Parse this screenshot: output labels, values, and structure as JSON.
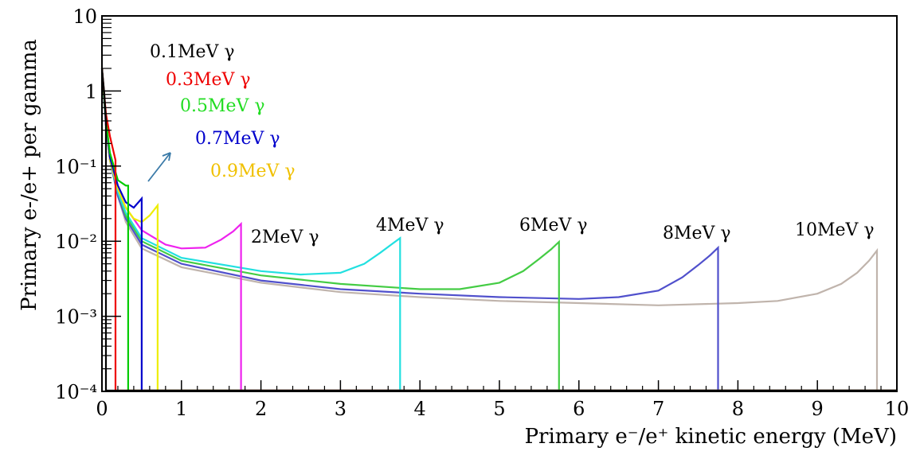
{
  "chart_data": {
    "type": "line",
    "title": "",
    "xlabel": "Primary e⁻/e⁺ kinetic energy (MeV)",
    "ylabel": "Primary e-/e+ per gamma",
    "xlim": [
      0,
      10
    ],
    "ylim": [
      0.0001,
      10
    ],
    "yscale": "log",
    "grid": false,
    "x_tick_labels": [
      "0",
      "1",
      "2",
      "3",
      "4",
      "5",
      "6",
      "7",
      "8",
      "9",
      "10"
    ],
    "y_ticks": [
      {
        "value": 10,
        "label": "10"
      },
      {
        "value": 1,
        "label": "1"
      },
      {
        "value": 0.1,
        "label": "10⁻¹"
      },
      {
        "value": 0.01,
        "label": "10⁻²"
      },
      {
        "value": 0.001,
        "label": "10⁻³"
      },
      {
        "value": 0.0001,
        "label": "10⁻⁴"
      }
    ],
    "series": [
      {
        "name": "10MeV γ",
        "color": "#c0b4ac",
        "endpoint": 9.75,
        "points": [
          [
            0,
            2
          ],
          [
            0.05,
            0.35
          ],
          [
            0.1,
            0.12
          ],
          [
            0.2,
            0.04
          ],
          [
            0.3,
            0.018
          ],
          [
            0.5,
            0.008
          ],
          [
            1,
            0.0045
          ],
          [
            2,
            0.0028
          ],
          [
            3,
            0.0021
          ],
          [
            4,
            0.0018
          ],
          [
            5,
            0.0016
          ],
          [
            6,
            0.0015
          ],
          [
            7,
            0.0014
          ],
          [
            8,
            0.0015
          ],
          [
            8.5,
            0.0016
          ],
          [
            9,
            0.002
          ],
          [
            9.3,
            0.0027
          ],
          [
            9.5,
            0.0038
          ],
          [
            9.65,
            0.0055
          ],
          [
            9.75,
            0.0075
          ]
        ]
      },
      {
        "name": "8MeV γ",
        "color": "#5050cc",
        "endpoint": 7.75,
        "points": [
          [
            0,
            2
          ],
          [
            0.05,
            0.35
          ],
          [
            0.1,
            0.12
          ],
          [
            0.2,
            0.04
          ],
          [
            0.3,
            0.02
          ],
          [
            0.5,
            0.009
          ],
          [
            1,
            0.005
          ],
          [
            2,
            0.003
          ],
          [
            3,
            0.0023
          ],
          [
            4,
            0.002
          ],
          [
            5,
            0.0018
          ],
          [
            6,
            0.0017
          ],
          [
            6.5,
            0.0018
          ],
          [
            7,
            0.0022
          ],
          [
            7.3,
            0.0033
          ],
          [
            7.5,
            0.0048
          ],
          [
            7.65,
            0.0065
          ],
          [
            7.75,
            0.0082
          ]
        ]
      },
      {
        "name": "6MeV γ",
        "color": "#44cc44",
        "endpoint": 5.75,
        "points": [
          [
            0,
            2
          ],
          [
            0.05,
            0.35
          ],
          [
            0.1,
            0.12
          ],
          [
            0.2,
            0.045
          ],
          [
            0.3,
            0.022
          ],
          [
            0.5,
            0.01
          ],
          [
            1,
            0.0055
          ],
          [
            2,
            0.0035
          ],
          [
            3,
            0.0027
          ],
          [
            4,
            0.0023
          ],
          [
            4.5,
            0.0023
          ],
          [
            5,
            0.0028
          ],
          [
            5.3,
            0.004
          ],
          [
            5.5,
            0.0058
          ],
          [
            5.65,
            0.0078
          ],
          [
            5.75,
            0.0098
          ]
        ]
      },
      {
        "name": "4MeV γ",
        "color": "#22e0e0",
        "endpoint": 3.75,
        "points": [
          [
            0,
            2
          ],
          [
            0.05,
            0.35
          ],
          [
            0.1,
            0.12
          ],
          [
            0.2,
            0.045
          ],
          [
            0.3,
            0.024
          ],
          [
            0.5,
            0.011
          ],
          [
            1,
            0.006
          ],
          [
            2,
            0.004
          ],
          [
            2.5,
            0.0036
          ],
          [
            3,
            0.0038
          ],
          [
            3.3,
            0.005
          ],
          [
            3.5,
            0.007
          ],
          [
            3.65,
            0.0092
          ],
          [
            3.75,
            0.011
          ]
        ]
      },
      {
        "name": "2MeV γ",
        "color": "#ee22ee",
        "endpoint": 1.75,
        "points": [
          [
            0,
            2
          ],
          [
            0.05,
            0.35
          ],
          [
            0.1,
            0.12
          ],
          [
            0.2,
            0.05
          ],
          [
            0.3,
            0.028
          ],
          [
            0.5,
            0.014
          ],
          [
            0.8,
            0.009
          ],
          [
            1,
            0.008
          ],
          [
            1.3,
            0.0082
          ],
          [
            1.5,
            0.0105
          ],
          [
            1.65,
            0.0135
          ],
          [
            1.75,
            0.017
          ]
        ]
      },
      {
        "name": "0.9MeV γ",
        "color": "#eeee00",
        "endpoint": 0.7,
        "points": [
          [
            0,
            2
          ],
          [
            0.05,
            0.4
          ],
          [
            0.1,
            0.12
          ],
          [
            0.2,
            0.05
          ],
          [
            0.3,
            0.028
          ],
          [
            0.4,
            0.02
          ],
          [
            0.5,
            0.018
          ],
          [
            0.6,
            0.022
          ],
          [
            0.7,
            0.03
          ]
        ]
      },
      {
        "name": "0.7MeV γ",
        "color": "#0000cc",
        "endpoint": 0.5,
        "points": [
          [
            0,
            2
          ],
          [
            0.05,
            0.4
          ],
          [
            0.1,
            0.13
          ],
          [
            0.2,
            0.055
          ],
          [
            0.3,
            0.033
          ],
          [
            0.4,
            0.028
          ],
          [
            0.5,
            0.037
          ]
        ]
      },
      {
        "name": "0.5MeV γ",
        "color": "#00cc00",
        "endpoint": 0.33,
        "points": [
          [
            0,
            2
          ],
          [
            0.05,
            0.4
          ],
          [
            0.1,
            0.15
          ],
          [
            0.2,
            0.065
          ],
          [
            0.3,
            0.055
          ],
          [
            0.33,
            0.055
          ]
        ]
      },
      {
        "name": "0.3MeV γ",
        "color": "#ee0000",
        "endpoint": 0.17,
        "points": [
          [
            0,
            2
          ],
          [
            0.05,
            0.5
          ],
          [
            0.1,
            0.25
          ],
          [
            0.17,
            0.12
          ]
        ]
      },
      {
        "name": "0.1MeV γ",
        "color": "#000000",
        "endpoint": 0.05,
        "points": [
          [
            0,
            2
          ],
          [
            0.03,
            0.9
          ],
          [
            0.05,
            0.4
          ]
        ]
      }
    ],
    "annotations": [
      {
        "text": "0.1MeV γ",
        "color": "#000000"
      },
      {
        "text": "0.3MeV γ",
        "color": "#ee0000"
      },
      {
        "text": "0.5MeV γ",
        "color": "#22dd22"
      },
      {
        "text": "0.7MeV γ",
        "color": "#0000cc"
      },
      {
        "text": "0.9MeV γ",
        "color": "#f0c000"
      },
      {
        "text": "2MeV γ",
        "color": "#000000"
      },
      {
        "text": "4MeV γ",
        "color": "#000000"
      },
      {
        "text": "6MeV γ",
        "color": "#000000"
      },
      {
        "text": "8MeV γ",
        "color": "#000000"
      },
      {
        "text": "10MeV γ",
        "color": "#000000"
      }
    ]
  }
}
